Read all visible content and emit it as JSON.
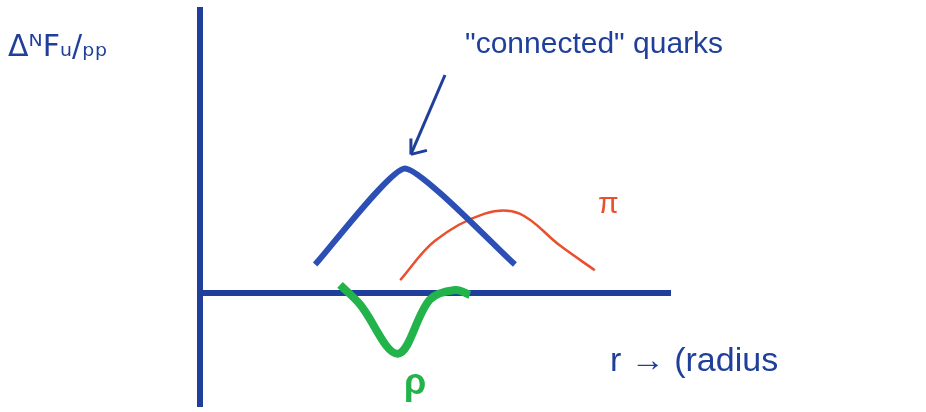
{
  "chart_data": {
    "type": "line",
    "y_label": "ΔᴺFᵤ/ₚₚ",
    "x_label": "r → (radius",
    "xlim": [
      0,
      10
    ],
    "ylim": [
      -4,
      10
    ],
    "tick_labels": false,
    "grid": false,
    "series": [
      {
        "name": "\"connected\" quarks",
        "color": "#2b4fb5",
        "x": [
          2.45,
          4.36,
          6.7
        ],
        "values": [
          1.0,
          4.4,
          1.0
        ]
      },
      {
        "name": "π",
        "color": "#e8502e",
        "x": [
          4.26,
          5.0,
          6.06,
          6.8,
          7.66,
          8.4
        ],
        "values": [
          0.45,
          1.84,
          2.8,
          2.8,
          1.67,
          0.8
        ]
      },
      {
        "name": "ρ",
        "color": "#22b34a",
        "x": [
          2.98,
          3.4,
          4.21,
          4.89,
          5.43,
          5.74
        ],
        "values": [
          0.28,
          -0.4,
          -2.15,
          -0.24,
          0.1,
          -0.07
        ]
      }
    ]
  }
}
